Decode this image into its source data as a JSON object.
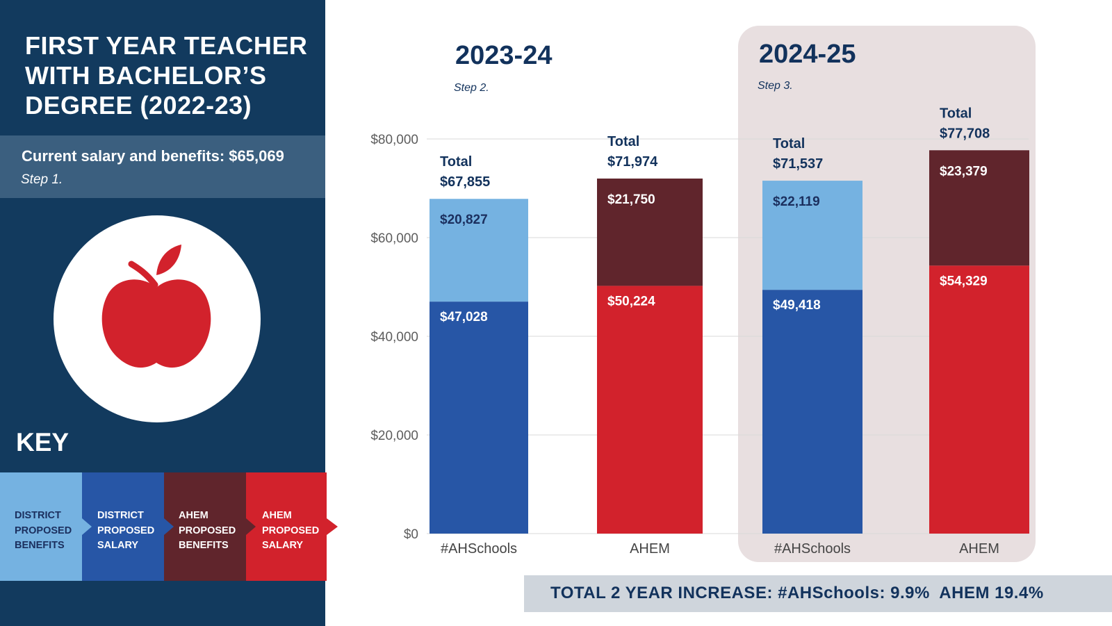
{
  "panel": {
    "title": "FIRST YEAR TEACHER WITH BACHELOR’S DEGREE (2022-23)",
    "current_label": "Current salary and benefits: $65,069",
    "current_step": "Step 1.",
    "key_title": "KEY",
    "key_items": [
      {
        "label": "DISTRICT PROPOSED BENEFITS",
        "color": "#75b2e1"
      },
      {
        "label": "DISTRICT PROPOSED SALARY",
        "color": "#2756a6"
      },
      {
        "label": "AHEM PROPOSED BENEFITS",
        "color": "#60252c"
      },
      {
        "label": "AHEM PROPOSED SALARY",
        "color": "#d2222c"
      }
    ]
  },
  "summary": "TOTAL 2 YEAR INCREASE: #AHSchools: 9.9%  AHEM 19.4%",
  "colors": {
    "navy": "#123a5e",
    "district_benefits": "#75b2e1",
    "district_salary": "#2756a6",
    "ahem_benefits": "#60252c",
    "ahem_salary": "#d2222c",
    "highlight_bg": "#e8dfe0"
  },
  "chart_data": {
    "type": "bar",
    "stacked": true,
    "ylim": [
      0,
      80000
    ],
    "yticks": [
      0,
      20000,
      40000,
      60000,
      80000
    ],
    "ytick_labels": [
      "$0",
      "$20,000",
      "$40,000",
      "$60,000",
      "$80,000"
    ],
    "groups": [
      {
        "title": "2023-24",
        "step": "Step 2.",
        "highlighted": false
      },
      {
        "title": "2024-25",
        "step": "Step 3.",
        "highlighted": true
      }
    ],
    "bars": [
      {
        "group": 0,
        "category": "#AHSchools",
        "salary": 47028,
        "benefits": 20827,
        "salary_label": "$47,028",
        "benefits_label": "$20,827",
        "total_title": "Total",
        "total_label": "$67,855",
        "salary_color": "#2756a6",
        "benefits_color": "#75b2e1",
        "benefits_text_color": "#1b2f5e"
      },
      {
        "group": 0,
        "category": "AHEM",
        "salary": 50224,
        "benefits": 21750,
        "salary_label": "$50,224",
        "benefits_label": "$21,750",
        "total_title": "Total",
        "total_label": "$71,974",
        "salary_color": "#d2222c",
        "benefits_color": "#60252c",
        "benefits_text_color": "#ffffff"
      },
      {
        "group": 1,
        "category": "#AHSchools",
        "salary": 49418,
        "benefits": 22119,
        "salary_label": "$49,418",
        "benefits_label": "$22,119",
        "total_title": "Total",
        "total_label": "$71,537",
        "salary_color": "#2756a6",
        "benefits_color": "#75b2e1",
        "benefits_text_color": "#1b2f5e"
      },
      {
        "group": 1,
        "category": "AHEM",
        "salary": 54329,
        "benefits": 23379,
        "salary_label": "$54,329",
        "benefits_label": "$23,379",
        "total_title": "Total",
        "total_label": "$77,708",
        "salary_color": "#d2222c",
        "benefits_color": "#60252c",
        "benefits_text_color": "#ffffff"
      }
    ]
  }
}
